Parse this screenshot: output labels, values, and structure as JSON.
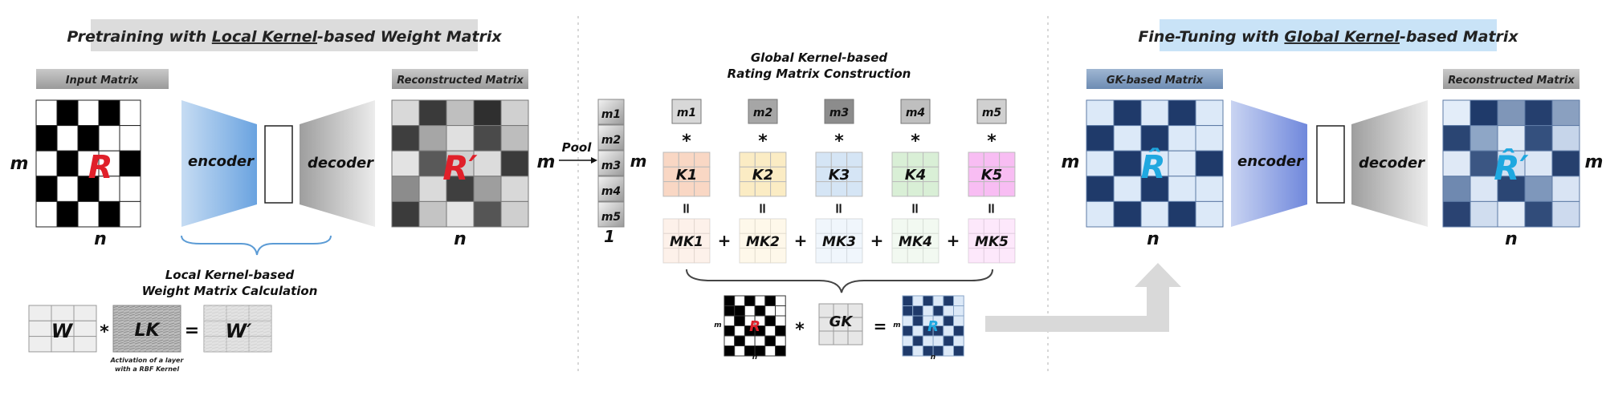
{
  "left_panel": {
    "banner_pre": "Pretraining with ",
    "banner_underlined": "Local Kernel",
    "banner_post": "-based Weight Matrix",
    "input_label": "Input Matrix",
    "reconstructed_label": "Reconstructed Matrix",
    "dim_m": "m",
    "dim_n": "n",
    "input_symbol": "R",
    "output_symbol": "R′",
    "encoder": "encoder",
    "decoder": "decoder",
    "calc_title_line1": "Local Kernel-based",
    "calc_title_line2": "Weight Matrix Calculation",
    "w": "W",
    "star": "*",
    "lk": "LK",
    "equals": "=",
    "w_prime": "W′",
    "caption_line1": "Activation of a layer",
    "caption_line2": "with a RBF Kernel"
  },
  "middle_panel": {
    "title_line1": "Global Kernel-based",
    "title_line2": "Rating Matrix Construction",
    "pool": "Pool",
    "dim_m": "m",
    "pooled_entries": [
      "m1",
      "m2",
      "m3",
      "m4",
      "m5"
    ],
    "pooled_width": "1",
    "kernels": [
      "K1",
      "K2",
      "K3",
      "K4",
      "K5"
    ],
    "multi_kernels": [
      "MK1",
      "MK2",
      "MK3",
      "MK4",
      "MK5"
    ],
    "plus": "+",
    "equals": "=",
    "star": "*",
    "gk": "GK",
    "small_symbol": "R",
    "small_m": "m",
    "small_n": "n",
    "kernel_colors": [
      "#f9d7c4",
      "#fbecc4",
      "#d5e5f5",
      "#d9efd6",
      "#f8bdf3"
    ],
    "pooled_shades": [
      "#d8d8d8",
      "#a6a6a6",
      "#8c8c8c",
      "#bfbfbf",
      "#d0d0d0"
    ]
  },
  "right_panel": {
    "banner_pre": "Fine-Tuning with ",
    "banner_underlined": "Global Kernel",
    "banner_post": "-based Matrix",
    "input_label": "GK-based Matrix",
    "reconstructed_label": "Reconstructed Matrix",
    "dim_m": "m",
    "dim_n": "n",
    "input_symbol": "R̂",
    "output_symbol": "R̂′",
    "encoder": "encoder",
    "decoder": "decoder"
  },
  "colors": {
    "symbol_red": "#e0202a",
    "symbol_cyan": "#1fa8e0",
    "navy": "#1f3a6a",
    "light_blue": "#dce9f8",
    "left_banner_bg": "#dcdcdc",
    "right_banner_bg": "#c9e3f7"
  }
}
